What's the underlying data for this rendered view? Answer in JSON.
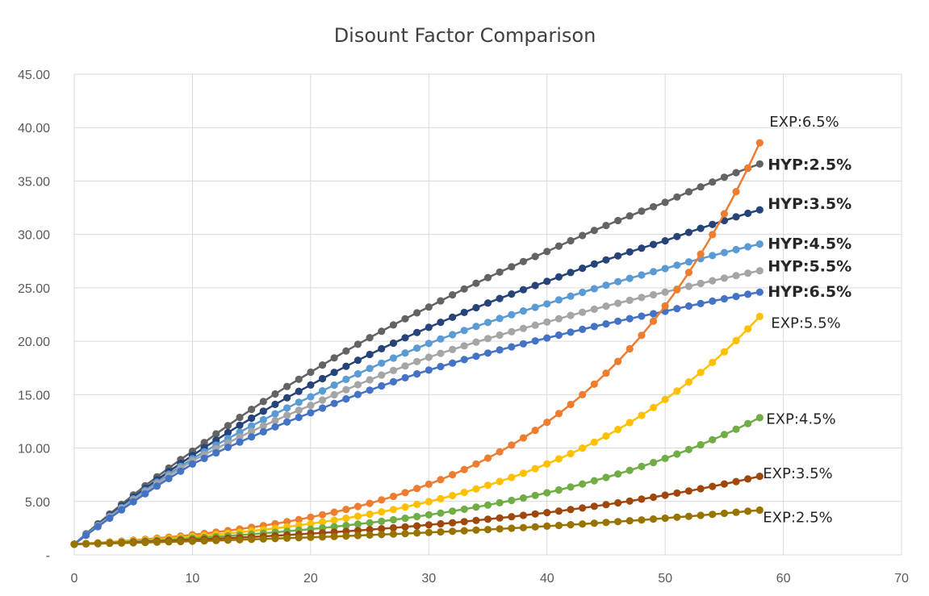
{
  "chart_data": {
    "type": "line",
    "title": "Disount Factor Comparison",
    "xlabel": "",
    "ylabel": "",
    "xlim": [
      0,
      70
    ],
    "ylim": [
      0,
      45
    ],
    "x_ticks": [
      "0",
      "10",
      "20",
      "30",
      "40",
      "50",
      "60",
      "70"
    ],
    "y_ticks": [
      "-",
      "5.00",
      "10.00",
      "15.00",
      "20.00",
      "25.00",
      "30.00",
      "35.00",
      "40.00",
      "45.00"
    ],
    "grid": true,
    "legend": "none (series labeled at line ends)",
    "x_range": [
      0,
      58
    ],
    "series": [
      {
        "name": "HYP:2.5%",
        "kind": "hyperbolic",
        "rate": 0.025,
        "color": "#636363",
        "label_bold": true,
        "values_at": {
          "0": 1.0,
          "10": 9.7,
          "20": 17.1,
          "30": 23.2,
          "40": 28.4,
          "50": 33.0,
          "58": 36.6
        }
      },
      {
        "name": "HYP:3.5%",
        "kind": "hyperbolic",
        "rate": 0.035,
        "color": "#264478",
        "label_bold": true,
        "values_at": {
          "0": 1.0,
          "10": 9.3,
          "20": 15.9,
          "30": 21.3,
          "40": 25.6,
          "50": 29.4,
          "58": 32.3
        }
      },
      {
        "name": "HYP:4.5%",
        "kind": "hyperbolic",
        "rate": 0.045,
        "color": "#5B9BD5",
        "label_bold": true,
        "values_at": {
          "0": 1.0,
          "10": 9.0,
          "20": 14.8,
          "30": 19.8,
          "40": 23.5,
          "50": 26.8,
          "58": 29.1
        }
      },
      {
        "name": "HYP:5.5%",
        "kind": "hyperbolic",
        "rate": 0.055,
        "color": "#A5A5A5",
        "label_bold": true,
        "values_at": {
          "0": 1.0,
          "10": 8.8,
          "20": 14.0,
          "30": 18.5,
          "40": 21.8,
          "50": 24.6,
          "58": 26.6
        }
      },
      {
        "name": "HYP:6.5%",
        "kind": "hyperbolic",
        "rate": 0.065,
        "color": "#4472C4",
        "label_bold": true,
        "values_at": {
          "0": 1.0,
          "10": 8.5,
          "20": 13.3,
          "30": 17.3,
          "40": 20.3,
          "50": 22.8,
          "58": 24.6
        }
      },
      {
        "name": "EXP:6.5%",
        "kind": "exponential",
        "rate": 0.065,
        "color": "#ED7D31",
        "label_bold": false,
        "values_at": {
          "0": 1.0,
          "10": 1.9,
          "20": 3.5,
          "30": 6.6,
          "40": 12.4,
          "50": 23.3,
          "58": 38.6
        }
      },
      {
        "name": "EXP:5.5%",
        "kind": "exponential",
        "rate": 0.055,
        "color": "#FFC000",
        "label_bold": false,
        "values_at": {
          "0": 1.0,
          "10": 1.7,
          "20": 2.9,
          "30": 5.0,
          "40": 8.5,
          "50": 14.5,
          "58": 22.3
        }
      },
      {
        "name": "EXP:4.5%",
        "kind": "exponential",
        "rate": 0.045,
        "color": "#70AD47",
        "label_bold": false,
        "values_at": {
          "0": 1.0,
          "10": 1.6,
          "20": 2.4,
          "30": 3.7,
          "40": 5.8,
          "50": 9.0,
          "58": 12.8
        }
      },
      {
        "name": "EXP:3.5%",
        "kind": "exponential",
        "rate": 0.035,
        "color": "#9E480E",
        "label_bold": false,
        "values_at": {
          "0": 1.0,
          "10": 1.4,
          "20": 2.0,
          "30": 2.8,
          "40": 4.0,
          "50": 5.6,
          "58": 7.4
        }
      },
      {
        "name": "EXP:2.5%",
        "kind": "exponential",
        "rate": 0.025,
        "color": "#997300",
        "label_bold": false,
        "values_at": {
          "0": 1.0,
          "10": 1.3,
          "20": 1.6,
          "30": 2.1,
          "40": 2.7,
          "50": 3.4,
          "58": 4.2
        }
      }
    ]
  }
}
